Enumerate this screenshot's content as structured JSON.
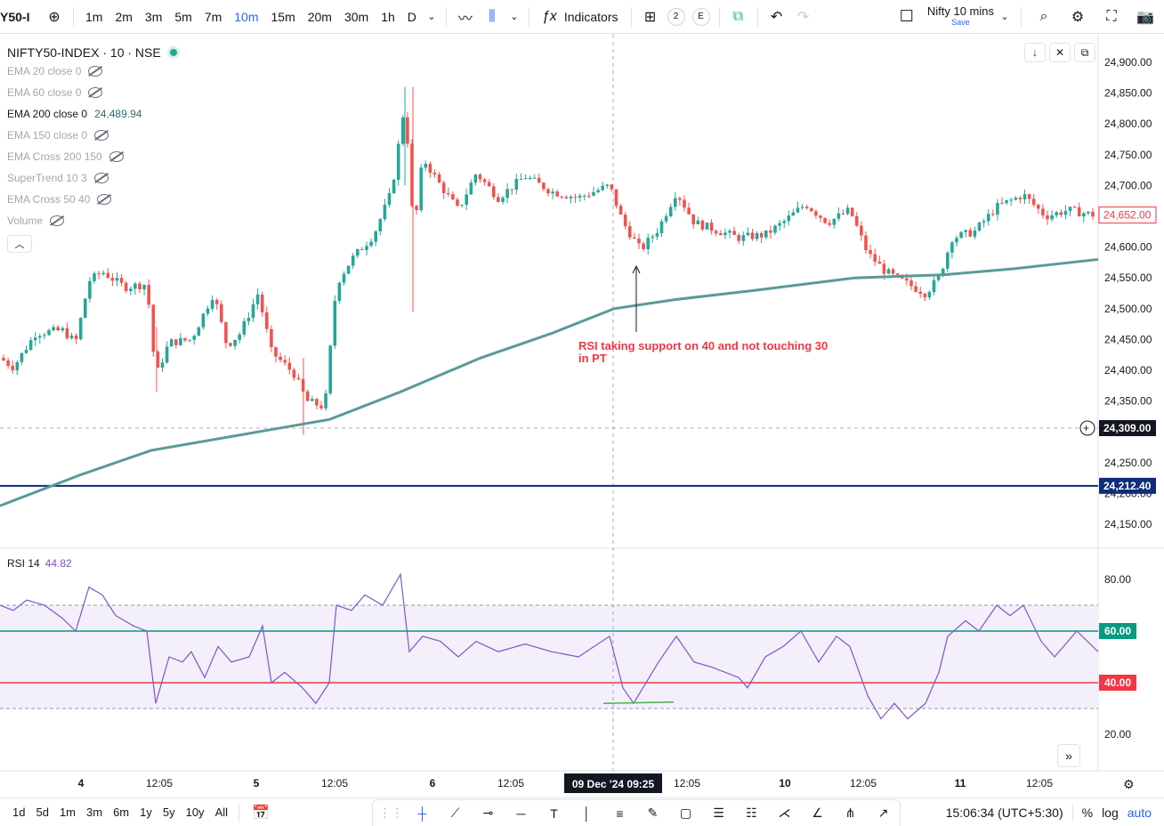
{
  "toolbar": {
    "symbol": "Y50-I",
    "intervals": [
      "1m",
      "2m",
      "3m",
      "5m",
      "7m",
      "10m",
      "15m",
      "20m",
      "30m",
      "1h",
      "D"
    ],
    "active_interval": "10m",
    "indicators_label": "Indicators",
    "chip_2": "2",
    "chip_e": "E",
    "layout_name": "Nifty 10 mins",
    "layout_save": "Save"
  },
  "legend": {
    "title": "NIFTY50-INDEX · 10 · NSE",
    "rows": [
      {
        "label": "EMA 20 close 0",
        "on": false,
        "value": ""
      },
      {
        "label": "EMA 60 close 0",
        "on": false,
        "value": ""
      },
      {
        "label": "EMA 200 close 0",
        "on": true,
        "value": "24,489.94"
      },
      {
        "label": "EMA 150 close 0",
        "on": false,
        "value": ""
      },
      {
        "label": "EMA Cross 200 150",
        "on": false,
        "value": ""
      },
      {
        "label": "SuperTrend 10 3",
        "on": false,
        "value": ""
      },
      {
        "label": "EMA Cross 50 40",
        "on": false,
        "value": ""
      },
      {
        "label": "Volume",
        "on": false,
        "value": ""
      }
    ]
  },
  "rsi": {
    "label": "RSI 14",
    "value": "44.82"
  },
  "price_axis": {
    "ticks": [
      "24,900.00",
      "24,850.00",
      "24,800.00",
      "24,750.00",
      "24,700.00",
      "24,650.00",
      "24,600.00",
      "24,550.00",
      "24,500.00",
      "24,450.00",
      "24,400.00",
      "24,350.00",
      "24,300.00",
      "24,250.00",
      "24,200.00",
      "24,150.00"
    ],
    "last_price": "24,652.00",
    "crosshair_price": "24,309.00",
    "hline_price": "24,212.40"
  },
  "rsi_axis": {
    "ticks": [
      "80.00",
      "20.00"
    ],
    "upper": "60.00",
    "lower": "40.00"
  },
  "time_axis": {
    "labels": [
      {
        "t": "4",
        "bold": true
      },
      {
        "t": "12:05",
        "bold": false
      },
      {
        "t": "5",
        "bold": true
      },
      {
        "t": "12:05",
        "bold": false
      },
      {
        "t": "6",
        "bold": true
      },
      {
        "t": "12:05",
        "bold": false
      },
      {
        "t": "12:05",
        "bold": false
      },
      {
        "t": "10",
        "bold": true
      },
      {
        "t": "12:05",
        "bold": false
      },
      {
        "t": "11",
        "bold": true
      },
      {
        "t": "12:05",
        "bold": false
      }
    ],
    "crosshair_time": "09 Dec '24   09:25"
  },
  "annotation": {
    "line1": "RSI taking support on 40 and not touching 30",
    "line2": "in PT"
  },
  "bottom": {
    "ranges": [
      "1d",
      "5d",
      "1m",
      "3m",
      "6m",
      "1y",
      "5y",
      "10y",
      "All"
    ],
    "clock": "15:06:34 (UTC+5:30)",
    "percent": "%",
    "log": "log",
    "auto": "auto"
  },
  "colors": {
    "up": "#26a69a",
    "down": "#ef5350",
    "ema": "#5b9a98",
    "rsi": "#7e57c2",
    "hline": "#0d2c7a",
    "accent": "#2962ff"
  }
}
